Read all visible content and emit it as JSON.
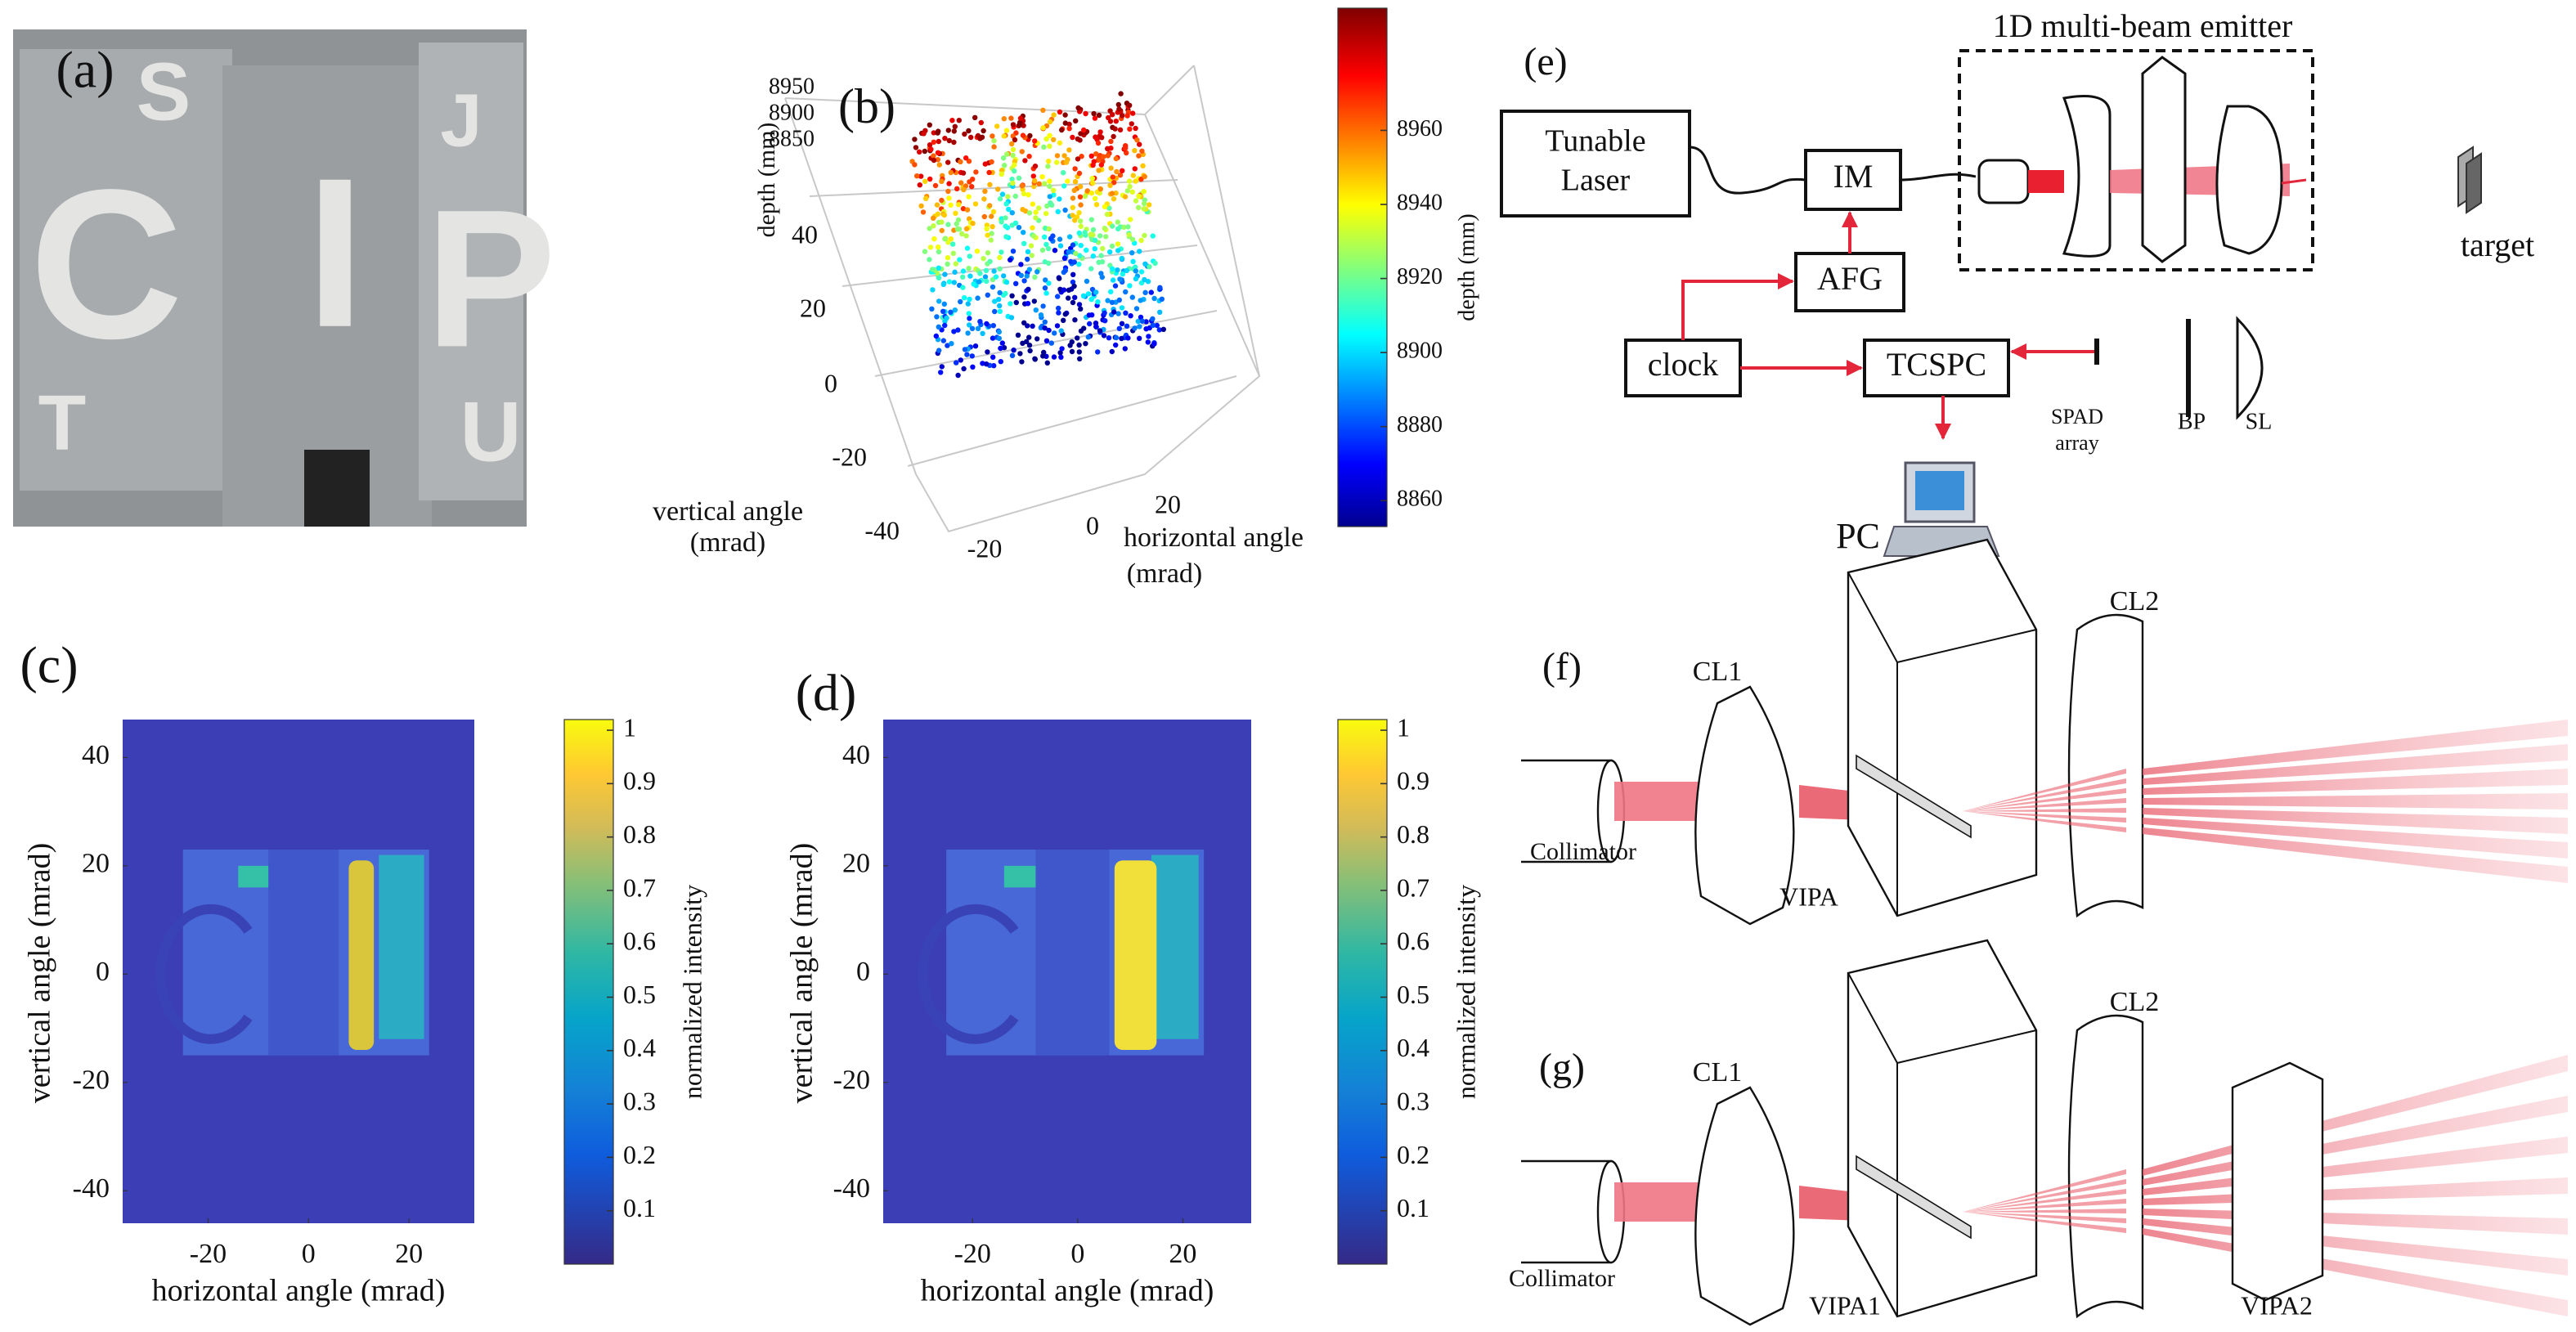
{
  "panels": {
    "a": {
      "label": "(a)",
      "letters": [
        "S",
        "C",
        "I",
        "P",
        "J",
        "T",
        "U"
      ]
    },
    "b": {
      "label": "(b)",
      "depth_label": "depth (mm)",
      "depth_ticks": [
        8950,
        8900,
        8850
      ],
      "vertical_label": [
        "vertical angle",
        "(mrad)"
      ],
      "vertical_ticks": [
        40,
        20,
        0,
        -20,
        -40
      ],
      "horizontal_label": [
        "horizontal angle",
        "(mrad)"
      ],
      "horizontal_ticks": [
        -20,
        0,
        20
      ],
      "colorbar": {
        "label": "depth (mm)",
        "lim": [
          8853,
          8993
        ],
        "ticks": [
          8960,
          8940,
          8920,
          8900,
          8880,
          8860
        ]
      }
    },
    "c": {
      "label": "(c)",
      "xlabel": "horizontal angle (mrad)",
      "ylabel": "vertical angle (mrad)",
      "xlim": [
        -37,
        33
      ],
      "ylim": [
        -46,
        47
      ],
      "xticks": [
        -20,
        0,
        20
      ],
      "yticks": [
        40,
        20,
        0,
        -20,
        -40
      ],
      "colorbar": {
        "label": "normalized intensity",
        "lim": [
          0,
          1.02
        ],
        "ticks": [
          1,
          0.9,
          0.8,
          0.7,
          0.6,
          0.5,
          0.4,
          0.3,
          0.2,
          0.1
        ]
      }
    },
    "d": {
      "label": "(d)",
      "xlabel": "horizontal angle (mrad)",
      "ylabel": "vertical angle (mrad)",
      "xlim": [
        -37,
        33
      ],
      "ylim": [
        -46,
        47
      ],
      "xticks": [
        -20,
        0,
        20
      ],
      "yticks": [
        40,
        20,
        0,
        -20,
        -40
      ],
      "colorbar": {
        "label": "normalized intensity",
        "lim": [
          0,
          1.02
        ],
        "ticks": [
          1,
          0.9,
          0.8,
          0.7,
          0.6,
          0.5,
          0.4,
          0.3,
          0.2,
          0.1
        ]
      }
    },
    "e": {
      "label": "(e)",
      "emitter_label": "1D multi-beam emitter",
      "nodes": [
        {
          "label": [
            "Tunable",
            "Laser"
          ]
        },
        {
          "label": "IM"
        },
        {
          "label": "AFG"
        },
        {
          "label": "clock"
        },
        {
          "label": "TCSPC"
        }
      ],
      "target": "target",
      "spad": [
        "SPAD",
        "array"
      ],
      "bp": "BP",
      "sl": "SL",
      "pc": "PC"
    },
    "f": {
      "label": "(f)",
      "cl1": "CL1",
      "cl2": "CL2",
      "collimator": "Collimator",
      "vipa": "VIPA"
    },
    "g": {
      "label": "(g)",
      "cl1": "CL1",
      "cl2": "CL2",
      "collimator": "Collimator",
      "vipa1": "VIPA1",
      "vipa2": "VIPA2"
    }
  }
}
